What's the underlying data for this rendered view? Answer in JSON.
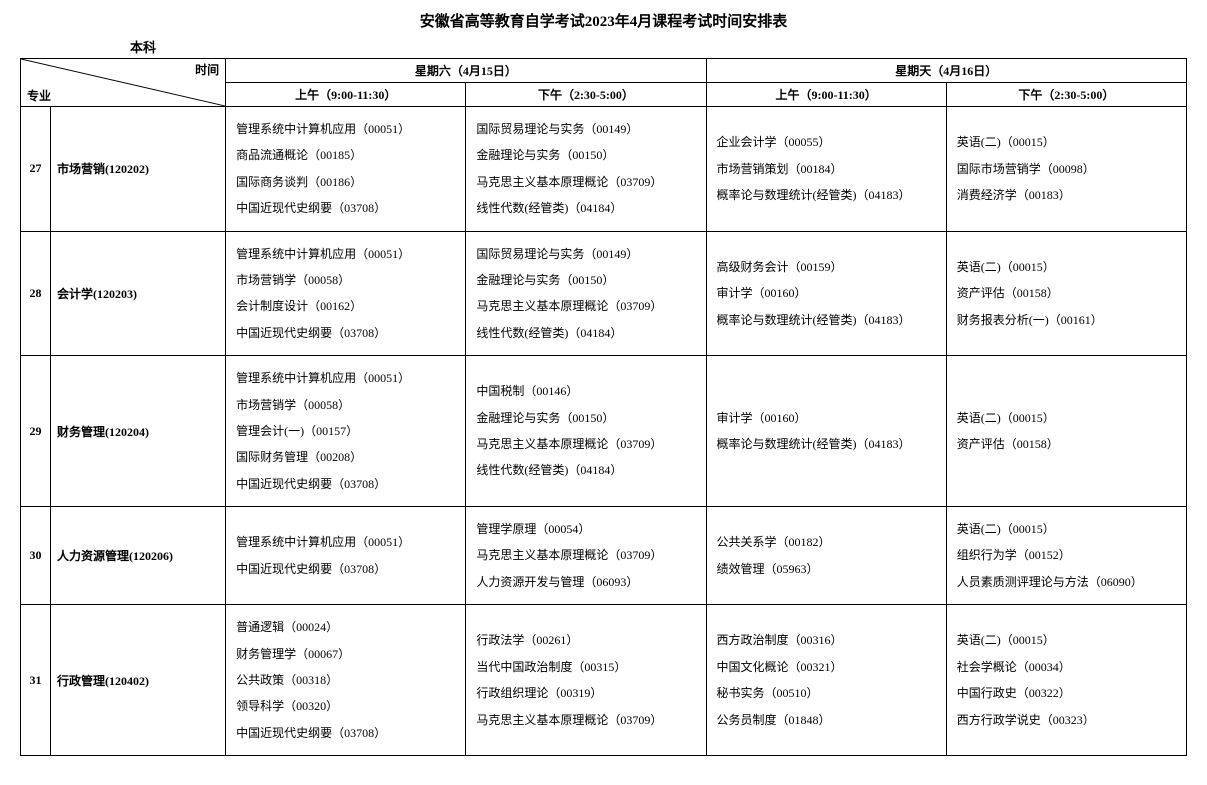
{
  "title": "安徽省高等教育自学考试2023年4月课程考试时间安排表",
  "level": "本科",
  "header": {
    "majorLabel": "专业",
    "timeLabel": "时间",
    "days": [
      {
        "name": "星期六（4月15日）",
        "am": "上午（9:00-11:30）",
        "pm": "下午（2:30-5:00）"
      },
      {
        "name": "星期天（4月16日）",
        "am": "上午（9:00-11:30）",
        "pm": "下午（2:30-5:00）"
      }
    ]
  },
  "rows": [
    {
      "num": "27",
      "major": "市场营销(120202)",
      "sat_am": [
        "管理系统中计算机应用（00051）",
        "商品流通概论（00185）",
        "国际商务谈判（00186）",
        "中国近现代史纲要（03708）"
      ],
      "sat_pm": [
        "国际贸易理论与实务（00149）",
        "金融理论与实务（00150）",
        "马克思主义基本原理概论（03709）",
        "线性代数(经管类)（04184）"
      ],
      "sun_am": [
        "企业会计学（00055）",
        "市场营销策划（00184）",
        "概率论与数理统计(经管类)（04183）"
      ],
      "sun_pm": [
        "英语(二)（00015）",
        "国际市场营销学（00098）",
        "消费经济学（00183）"
      ]
    },
    {
      "num": "28",
      "major": "会计学(120203)",
      "sat_am": [
        "管理系统中计算机应用（00051）",
        "市场营销学（00058）",
        "会计制度设计（00162）",
        "中国近现代史纲要（03708）"
      ],
      "sat_pm": [
        "国际贸易理论与实务（00149）",
        "金融理论与实务（00150）",
        "马克思主义基本原理概论（03709）",
        "线性代数(经管类)（04184）"
      ],
      "sun_am": [
        "高级财务会计（00159）",
        "审计学（00160）",
        "概率论与数理统计(经管类)（04183）"
      ],
      "sun_pm": [
        "英语(二)（00015）",
        "资产评估（00158）",
        "财务报表分析(一)（00161）"
      ]
    },
    {
      "num": "29",
      "major": "财务管理(120204)",
      "sat_am": [
        "管理系统中计算机应用（00051）",
        "市场营销学（00058）",
        "管理会计(一)（00157）",
        "国际财务管理（00208）",
        "中国近现代史纲要（03708）"
      ],
      "sat_pm": [
        "中国税制（00146）",
        "金融理论与实务（00150）",
        "马克思主义基本原理概论（03709）",
        "线性代数(经管类)（04184）"
      ],
      "sun_am": [
        "审计学（00160）",
        "概率论与数理统计(经管类)（04183）"
      ],
      "sun_pm": [
        "英语(二)（00015）",
        "资产评估（00158）"
      ]
    },
    {
      "num": "30",
      "major": "人力资源管理(120206)",
      "sat_am": [
        "管理系统中计算机应用（00051）",
        "中国近现代史纲要（03708）"
      ],
      "sat_pm": [
        "管理学原理（00054）",
        "马克思主义基本原理概论（03709）",
        "人力资源开发与管理（06093）"
      ],
      "sun_am": [
        "公共关系学（00182）",
        "绩效管理（05963）"
      ],
      "sun_pm": [
        "英语(二)（00015）",
        "组织行为学（00152）",
        "人员素质测评理论与方法（06090）"
      ]
    },
    {
      "num": "31",
      "major": "行政管理(120402)",
      "sat_am": [
        "普通逻辑（00024）",
        "财务管理学（00067）",
        "公共政策（00318）",
        "领导科学（00320）",
        "中国近现代史纲要（03708）"
      ],
      "sat_pm": [
        "行政法学（00261）",
        "当代中国政治制度（00315）",
        "行政组织理论（00319）",
        "马克思主义基本原理概论（03709）"
      ],
      "sun_am": [
        "西方政治制度（00316）",
        "中国文化概论（00321）",
        "秘书实务（00510）",
        "公务员制度（01848）"
      ],
      "sun_pm": [
        "英语(二)（00015）",
        "社会学概论（00034）",
        "中国行政史（00322）",
        "西方行政学说史（00323）"
      ]
    }
  ]
}
